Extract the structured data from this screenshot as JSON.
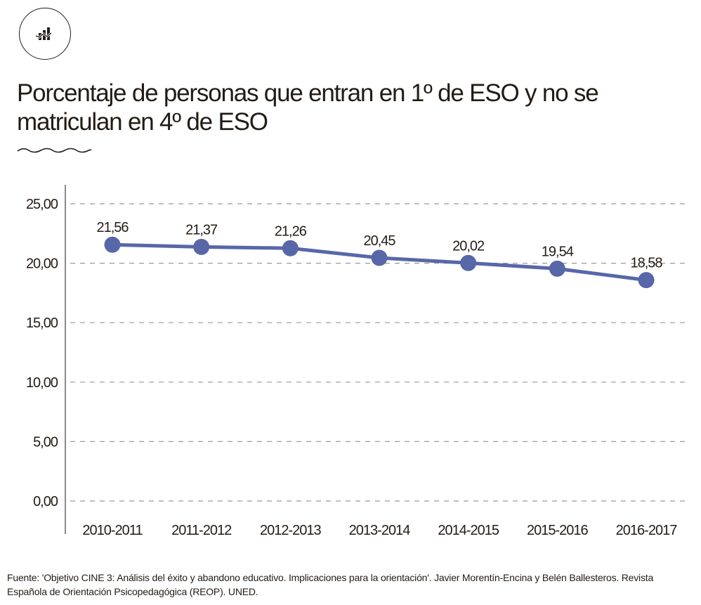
{
  "header": {
    "logo_icon": "bar-line-chart-icon",
    "title": "Porcentaje de personas que entran en 1º de ESO y no se matriculan en 4º de ESO",
    "divider_icon": "wave-divider-icon"
  },
  "colors": {
    "text": "#231c16",
    "series": "#5767a8",
    "grid": "#9a9a9a",
    "axis": "#8a8a8a"
  },
  "chart_data": {
    "type": "line",
    "title": "Porcentaje de personas que entran en 1º de ESO y no se matriculan en 4º de ESO",
    "xlabel": "",
    "ylabel": "",
    "categories": [
      "2010-2011",
      "2011-2012",
      "2012-2013",
      "2013-2014",
      "2014-2015",
      "2015-2016",
      "2016-2017"
    ],
    "series": [
      {
        "name": "Porcentaje",
        "values": [
          21.56,
          21.37,
          21.26,
          20.45,
          20.02,
          19.54,
          18.58
        ],
        "labels": [
          "21,56",
          "21,37",
          "21,26",
          "20,45",
          "20,02",
          "19,54",
          "18,58"
        ]
      }
    ],
    "ylim": [
      0,
      25
    ],
    "yticks": [
      0,
      5,
      10,
      15,
      20,
      25
    ],
    "ytick_labels": [
      "0,00",
      "5,00",
      "10,00",
      "15,00",
      "20,00",
      "25,00"
    ],
    "grid": true,
    "grid_style": "dashed",
    "legend": "none"
  },
  "footer": {
    "source": "Fuente: 'Objetivo CINE 3: Análisis del éxito y abandono educativo. Implicaciones para la orientación'. Javier Morentín-Encina y Belén Ballesteros. Revista Española de Orientación Psicopedagógica (REOP). UNED."
  }
}
